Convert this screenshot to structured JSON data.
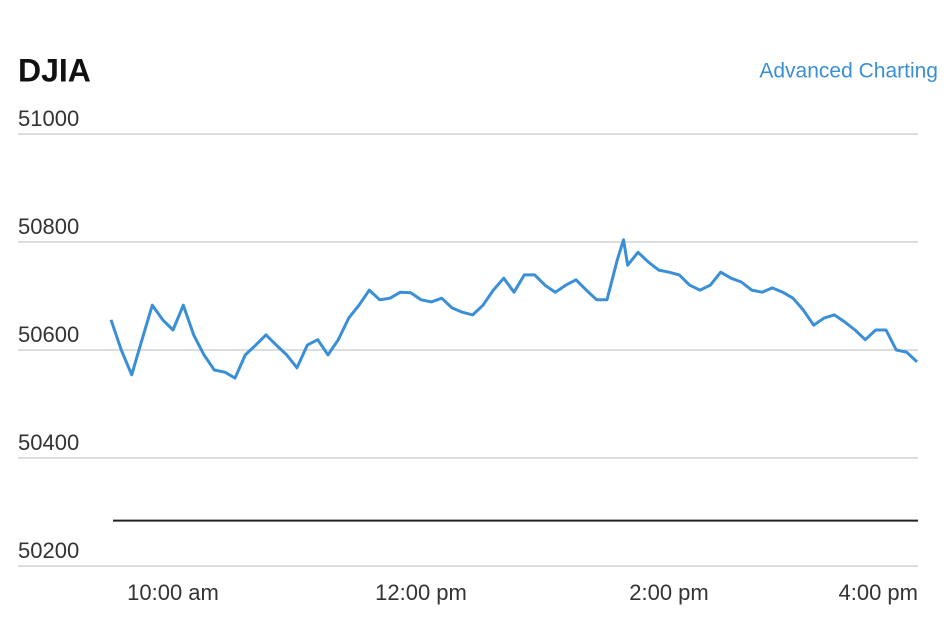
{
  "chart_data": {
    "type": "line",
    "title": "DJIA",
    "link": "Advanced Charting",
    "color": "#3b8fd6",
    "grid": true,
    "reference_line": 50284,
    "ylim": [
      50200,
      51000
    ],
    "yticks": [
      50200,
      50400,
      50600,
      50800,
      51000
    ],
    "xlim": [
      570,
      960
    ],
    "xticks": [
      {
        "value": 600,
        "label": "10:00 am"
      },
      {
        "value": 720,
        "label": "12:00 pm"
      },
      {
        "value": 840,
        "label": "2:00 pm"
      },
      {
        "value": 960,
        "label": "4:00 pm"
      }
    ],
    "x": [
      570,
      575,
      580,
      585,
      590,
      595,
      600,
      605,
      610,
      615,
      620,
      625,
      630,
      635,
      640,
      645,
      650,
      655,
      660,
      665,
      670,
      675,
      680,
      685,
      690,
      695,
      700,
      705,
      710,
      715,
      720,
      725,
      730,
      735,
      740,
      745,
      750,
      755,
      760,
      765,
      770,
      775,
      780,
      785,
      790,
      795,
      800,
      805,
      810,
      815,
      818,
      820,
      825,
      830,
      835,
      840,
      845,
      850,
      855,
      860,
      865,
      870,
      875,
      880,
      885,
      890,
      895,
      900,
      905,
      910,
      915,
      920,
      925,
      930,
      935,
      940,
      945,
      950,
      955,
      960
    ],
    "values": [
      50656,
      50600,
      50554,
      50619,
      50683,
      50656,
      50637,
      50683,
      50628,
      50591,
      50563,
      50559,
      50548,
      50591,
      50609,
      50628,
      50609,
      50591,
      50567,
      50609,
      50619,
      50591,
      50619,
      50659,
      50683,
      50711,
      50693,
      50696,
      50707,
      50706,
      50693,
      50689,
      50696,
      50678,
      50670,
      50665,
      50683,
      50711,
      50733,
      50707,
      50739,
      50739,
      50720,
      50707,
      50720,
      50730,
      50711,
      50693,
      50693,
      50767,
      50804,
      50757,
      50781,
      50763,
      50748,
      50744,
      50739,
      50720,
      50711,
      50720,
      50744,
      50733,
      50726,
      50711,
      50707,
      50715,
      50707,
      50696,
      50674,
      50646,
      50659,
      50665,
      50652,
      50637,
      50619,
      50637,
      50637,
      50600,
      50596,
      50578
    ]
  }
}
